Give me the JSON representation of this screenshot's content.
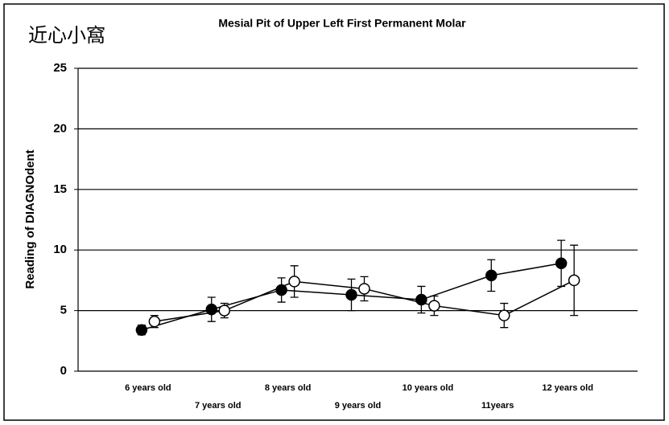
{
  "chart_data": {
    "type": "line",
    "corner_label": "近心小窩",
    "title": "Mesial Pit of Upper Left First Permanent Molar",
    "y_label": "Reading of DIAGNOdent",
    "categories": [
      "6 years old",
      "7 years old",
      "8 years old",
      "9 years old",
      "10 years old",
      "11years",
      "12 years old"
    ],
    "series": [
      {
        "color": "#000000",
        "values": [
          3.4,
          5.1,
          6.7,
          6.3,
          5.9,
          7.9,
          8.9
        ],
        "errors": [
          0.4,
          1.0,
          1.0,
          1.3,
          1.1,
          1.3,
          1.9
        ]
      },
      {
        "color": "#ffffff",
        "values": [
          4.1,
          5.0,
          7.4,
          6.8,
          5.4,
          4.6,
          7.5
        ],
        "errors": [
          0.5,
          0.6,
          1.3,
          1.0,
          0.8,
          1.0,
          2.9
        ]
      }
    ],
    "ylim": [
      0,
      25
    ],
    "yticks": [
      0,
      5,
      10,
      15,
      20,
      25
    ],
    "grid": true
  }
}
